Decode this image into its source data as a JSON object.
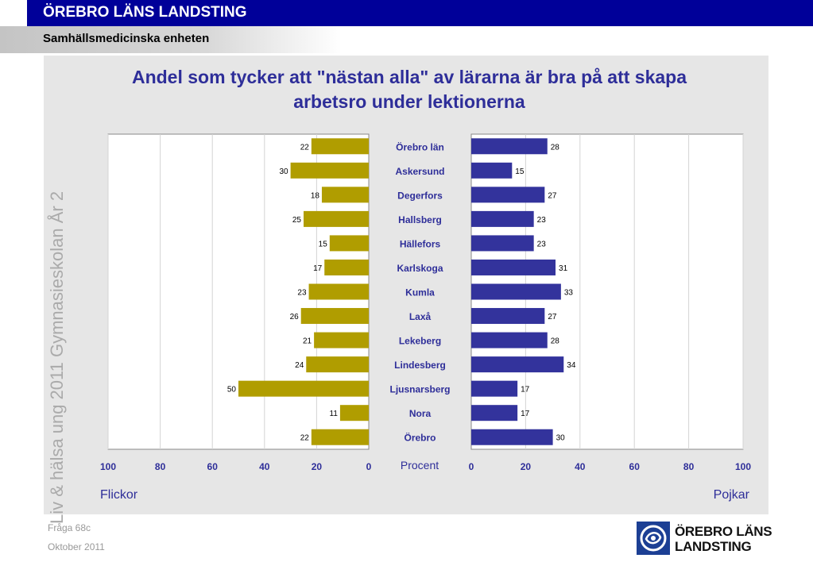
{
  "header": {
    "org_title": "ÖREBRO LÄNS LANDSTING",
    "unit_title": "Samhällsmedicinska enheten"
  },
  "side_caption": "Liv & hälsa ung 2011 Gymnasieskolan År 2",
  "footer": {
    "question": "Fråga 68c",
    "date": "Oktober 2011"
  },
  "logo": {
    "line1": "ÖREBRO LÄNS",
    "line2": "LANDSTING",
    "icon": "landsting-logo-icon"
  },
  "colors": {
    "header_bar": "#000099",
    "title_text": "#2e2e99",
    "girls_bar": "#b09d00",
    "boys_bar": "#33339c",
    "panel_bg": "#e6e6e6"
  },
  "chart_data": {
    "type": "bar",
    "orientation": "horizontal-butterfly",
    "title": "Andel som tycker att \"nästan alla\" av lärarna är bra på att skapa arbetsro under lektionerna",
    "xlabel": "Procent",
    "left_label": "Flickor",
    "right_label": "Pojkar",
    "categories": [
      "Örebro län",
      "Askersund",
      "Degerfors",
      "Hallsberg",
      "Hällefors",
      "Karlskoga",
      "Kumla",
      "Laxå",
      "Lekeberg",
      "Lindesberg",
      "Ljusnarsberg",
      "Nora",
      "Örebro"
    ],
    "series": [
      {
        "name": "Flickor",
        "values": [
          22,
          30,
          18,
          25,
          15,
          17,
          23,
          26,
          21,
          24,
          50,
          11,
          22
        ]
      },
      {
        "name": "Pojkar",
        "values": [
          28,
          15,
          27,
          23,
          23,
          31,
          33,
          27,
          28,
          34,
          17,
          17,
          30
        ]
      }
    ],
    "xlim": [
      0,
      100
    ],
    "ticks": [
      0,
      20,
      40,
      60,
      80,
      100
    ],
    "left_tick_labels": [
      "100",
      "80",
      "60",
      "40",
      "20",
      "0"
    ],
    "right_tick_labels": [
      "0",
      "20",
      "40",
      "60",
      "80",
      "100"
    ],
    "grid": true
  }
}
